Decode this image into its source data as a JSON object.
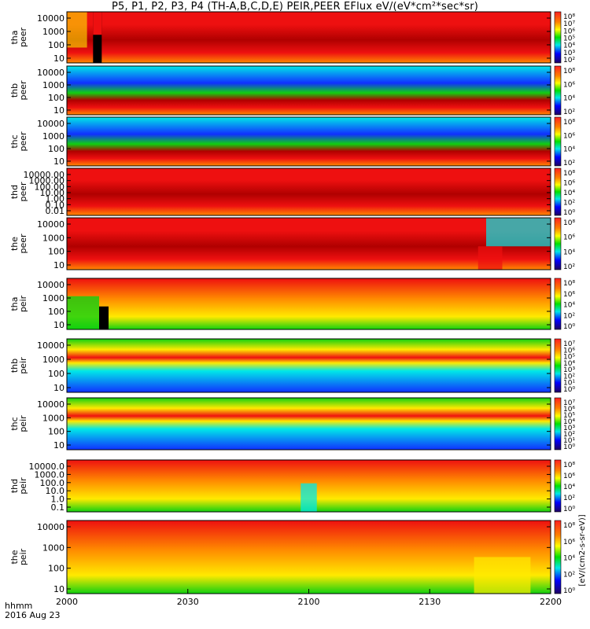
{
  "title": "P5, P1, P2, P3, P4 (TH-A,B,C,D,E) PEIR,PEER EFlux eV/(eV*cm²*sec*sr)",
  "time_axis": {
    "label_line1": "hhmm",
    "label_line2": "2016 Aug 23",
    "ticks": [
      "2000",
      "2030",
      "2100",
      "2130",
      "2200"
    ],
    "tick_minutes": [
      0,
      30,
      60,
      90,
      120
    ]
  },
  "colorbar_unit": "[eV/(cm2-s-sr-eV)]",
  "colors": {
    "black": "#000000",
    "darkred": "#b00000",
    "red": "#ee1010",
    "orange": "#ff8a00",
    "yellow": "#ffea00",
    "green": "#10d010",
    "cyan": "#00e8e8",
    "blue": "#1030ff",
    "navy": "#10107a"
  },
  "chart_data": [
    {
      "type": "heatmap",
      "name": "tha peer",
      "ylabel": [
        "tha",
        "peer"
      ],
      "yticks": [
        "10000",
        "1000",
        "100",
        "10"
      ],
      "cbar_ticks": [
        "10⁸",
        "10⁷",
        "10⁶",
        "10⁵",
        "10⁴",
        "10³",
        "10²"
      ]
    },
    {
      "type": "heatmap",
      "name": "thb peer",
      "ylabel": [
        "thb",
        "peer"
      ],
      "yticks": [
        "10000",
        "1000",
        "100",
        "10"
      ],
      "cbar_ticks": [
        "10⁸",
        "10⁶",
        "10⁴",
        "10²"
      ]
    },
    {
      "type": "heatmap",
      "name": "thc peer",
      "ylabel": [
        "thc",
        "peer"
      ],
      "yticks": [
        "10000",
        "1000",
        "100",
        "10"
      ],
      "cbar_ticks": [
        "10⁸",
        "10⁶",
        "10⁴",
        "10²"
      ]
    },
    {
      "type": "heatmap",
      "name": "thd peer",
      "ylabel": [
        "thd",
        "peer"
      ],
      "yticks": [
        "10000.00",
        "1000.00",
        "100.00",
        "10.00",
        "1.00",
        "0.10",
        "0.01"
      ],
      "cbar_ticks": [
        "10⁸",
        "10⁶",
        "10⁴",
        "10²",
        "10⁰"
      ]
    },
    {
      "type": "heatmap",
      "name": "the peer",
      "ylabel": [
        "the",
        "peer"
      ],
      "yticks": [
        "10000",
        "1000",
        "100",
        "10"
      ],
      "cbar_ticks": [
        "10⁸",
        "10⁶",
        "10⁴",
        "10²"
      ]
    },
    {
      "type": "heatmap",
      "name": "tha peir",
      "ylabel": [
        "tha",
        "peir"
      ],
      "yticks": [
        "10000",
        "1000",
        "100",
        "10"
      ],
      "cbar_ticks": [
        "10⁸",
        "10⁶",
        "10⁴",
        "10²",
        "10⁰"
      ]
    },
    {
      "type": "heatmap",
      "name": "thb peir",
      "ylabel": [
        "thb",
        "peir"
      ],
      "yticks": [
        "10000",
        "1000",
        "100",
        "10"
      ],
      "cbar_ticks": [
        "10⁷",
        "10⁶",
        "10⁵",
        "10⁴",
        "10³",
        "10²",
        "10¹",
        "10⁰"
      ]
    },
    {
      "type": "heatmap",
      "name": "thc peir",
      "ylabel": [
        "thc",
        "peir"
      ],
      "yticks": [
        "10000",
        "1000",
        "100",
        "10"
      ],
      "cbar_ticks": [
        "10⁷",
        "10⁶",
        "10⁵",
        "10⁴",
        "10³",
        "10²",
        "10¹",
        "10⁰"
      ]
    },
    {
      "type": "heatmap",
      "name": "thd peir",
      "ylabel": [
        "thd",
        "peir"
      ],
      "yticks": [
        "10000.0",
        "1000.0",
        "100.0",
        "10.0",
        "1.0",
        "0.1"
      ],
      "cbar_ticks": [
        "10⁸",
        "10⁶",
        "10⁴",
        "10²",
        "10⁰"
      ]
    },
    {
      "type": "heatmap",
      "name": "the peir",
      "ylabel": [
        "the",
        "peir"
      ],
      "yticks": [
        "10000",
        "1000",
        "100",
        "10"
      ],
      "cbar_ticks": [
        "10⁸",
        "10⁶",
        "10⁴",
        "10²",
        "10⁰"
      ]
    }
  ]
}
